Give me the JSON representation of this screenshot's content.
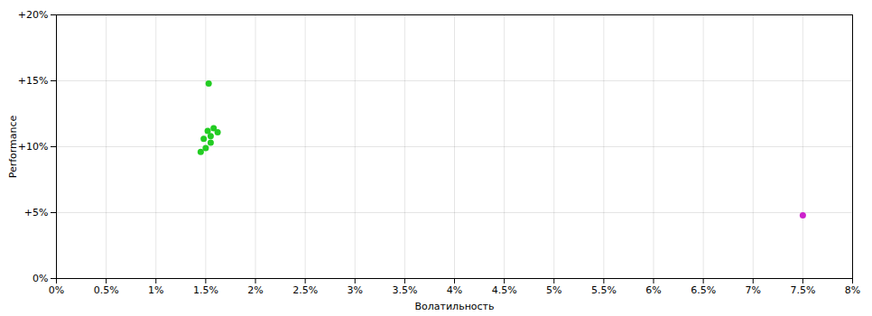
{
  "chart_data": {
    "type": "scatter",
    "xlabel": "Волатильность",
    "ylabel": "Performance",
    "x": [
      0.0153,
      0.0152,
      0.0158,
      0.0162,
      0.0155,
      0.0148,
      0.0155,
      0.015,
      0.0145,
      0.075
    ],
    "values": [
      0.148,
      0.112,
      0.114,
      0.111,
      0.108,
      0.106,
      0.103,
      0.099,
      0.096,
      0.048
    ],
    "colors": [
      "#22cc22",
      "#22cc22",
      "#22cc22",
      "#22cc22",
      "#22cc22",
      "#22cc22",
      "#22cc22",
      "#22cc22",
      "#22cc22",
      "#cc22cc"
    ],
    "xlim": [
      0,
      0.08
    ],
    "ylim": [
      0,
      0.2
    ],
    "xticks": [
      {
        "value": 0.0,
        "label": "0%"
      },
      {
        "value": 0.005,
        "label": "0.5%"
      },
      {
        "value": 0.01,
        "label": "1%"
      },
      {
        "value": 0.015,
        "label": "1.5%"
      },
      {
        "value": 0.02,
        "label": "2%"
      },
      {
        "value": 0.025,
        "label": "2.5%"
      },
      {
        "value": 0.03,
        "label": "3%"
      },
      {
        "value": 0.035,
        "label": "3.5%"
      },
      {
        "value": 0.04,
        "label": "4%"
      },
      {
        "value": 0.045,
        "label": "4.5%"
      },
      {
        "value": 0.05,
        "label": "5%"
      },
      {
        "value": 0.055,
        "label": "5.5%"
      },
      {
        "value": 0.06,
        "label": "6%"
      },
      {
        "value": 0.065,
        "label": "6.5%"
      },
      {
        "value": 0.07,
        "label": "7%"
      },
      {
        "value": 0.075,
        "label": "7.5%"
      },
      {
        "value": 0.08,
        "label": "8%"
      }
    ],
    "yticks": [
      {
        "value": 0.0,
        "label": "0%"
      },
      {
        "value": 0.05,
        "label": "+5%"
      },
      {
        "value": 0.1,
        "label": "+10%"
      },
      {
        "value": 0.15,
        "label": "+15%"
      },
      {
        "value": 0.2,
        "label": "+20%"
      }
    ],
    "grid": true
  }
}
